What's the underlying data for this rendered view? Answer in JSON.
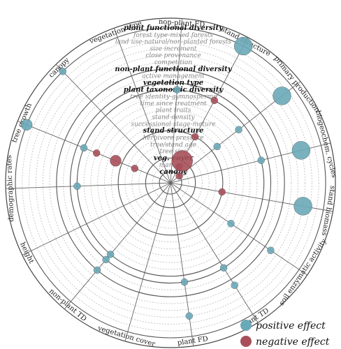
{
  "colors": {
    "positive": "#6aa9b8",
    "negative": "#a8505a",
    "ring_major": "#555555",
    "ring_minor": "#bbbbbb",
    "ring_label_bold": "#111111",
    "ring_label_light": "#888888"
  },
  "axes": [
    {
      "label": "stand structure"
    },
    {
      "label": "primary production"
    },
    {
      "label": "biogeochem. cycles"
    },
    {
      "label": "stand biomass"
    },
    {
      "label": "soil enzymatic activity"
    },
    {
      "label": "plant TD"
    },
    {
      "label": "plant FD"
    },
    {
      "label": "vegetation cover"
    },
    {
      "label": "non-plant TD"
    },
    {
      "label": "height"
    },
    {
      "label": "demographic rates"
    },
    {
      "label": "tree growth"
    },
    {
      "label": "canopy"
    },
    {
      "label": "vegetation type"
    },
    {
      "label": "non-plant FD"
    }
  ],
  "rings": [
    {
      "label": "plant functional diversity",
      "style": "bold"
    },
    {
      "label": "forest type-mixed forests",
      "style": "light"
    },
    {
      "label": "land use-natural/non-planted forests",
      "style": "light"
    },
    {
      "label": "size increment",
      "style": "light"
    },
    {
      "label": "close provenance",
      "style": "light"
    },
    {
      "label": "competition",
      "style": "light"
    },
    {
      "label": "non-plant functional diversity",
      "style": "bold"
    },
    {
      "label": "active management",
      "style": "light"
    },
    {
      "label": "vegetation type",
      "style": "bold"
    },
    {
      "label": "plant taxonomic diversity",
      "style": "bold"
    },
    {
      "label": "tree identity-gymnosperms",
      "style": "light"
    },
    {
      "label": "time since treatment",
      "style": "light"
    },
    {
      "label": "plant traits",
      "style": "light"
    },
    {
      "label": "stand density",
      "style": "light"
    },
    {
      "label": "successional stage-mature",
      "style": "light"
    },
    {
      "label": "stand structure",
      "style": "bold"
    },
    {
      "label": "herbivore pressure",
      "style": "light"
    },
    {
      "label": "tree/stand age",
      "style": "light"
    },
    {
      "label": "tree size",
      "style": "light"
    },
    {
      "label": "veg. cover",
      "style": "bold"
    },
    {
      "label": "man. int.",
      "style": "light"
    },
    {
      "label": "canopy",
      "style": "bold"
    }
  ],
  "effects": [
    {
      "axis": 0,
      "ring": 0,
      "sign": "positive",
      "size": 3
    },
    {
      "axis": 0,
      "ring": 9,
      "sign": "negative",
      "size": 1
    },
    {
      "axis": 0,
      "ring": 15,
      "sign": "negative",
      "size": 1
    },
    {
      "axis": 0,
      "ring": 20,
      "sign": "negative",
      "size": 1
    },
    {
      "axis": 1,
      "ring": 2,
      "sign": "positive",
      "size": 3
    },
    {
      "axis": 1,
      "ring": 10,
      "sign": "positive",
      "size": 1
    },
    {
      "axis": 1,
      "ring": 14,
      "sign": "positive",
      "size": 1
    },
    {
      "axis": 1,
      "ring": 21,
      "sign": "negative",
      "size": 1
    },
    {
      "axis": 2,
      "ring": 3,
      "sign": "positive",
      "size": 3
    },
    {
      "axis": 2,
      "ring": 9,
      "sign": "positive",
      "size": 1
    },
    {
      "axis": 3,
      "ring": 3,
      "sign": "positive",
      "size": 3
    },
    {
      "axis": 3,
      "ring": 15,
      "sign": "negative",
      "size": 1
    },
    {
      "axis": 4,
      "ring": 5,
      "sign": "positive",
      "size": 1
    },
    {
      "axis": 4,
      "ring": 12,
      "sign": "positive",
      "size": 1
    },
    {
      "axis": 5,
      "ring": 5,
      "sign": "positive",
      "size": 1
    },
    {
      "axis": 5,
      "ring": 8,
      "sign": "positive",
      "size": 1
    },
    {
      "axis": 6,
      "ring": 3,
      "sign": "positive",
      "size": 1
    },
    {
      "axis": 6,
      "ring": 8,
      "sign": "positive",
      "size": 1
    },
    {
      "axis": 8,
      "ring": 6,
      "sign": "positive",
      "size": 1
    },
    {
      "axis": 8,
      "ring": 8,
      "sign": "positive",
      "size": 1
    },
    {
      "axis": 8,
      "ring": 9,
      "sign": "positive",
      "size": 1
    },
    {
      "axis": 10,
      "ring": 9,
      "sign": "positive",
      "size": 1
    },
    {
      "axis": 11,
      "ring": 0,
      "sign": "positive",
      "size": 2
    },
    {
      "axis": 11,
      "ring": 9,
      "sign": "positive",
      "size": 1
    },
    {
      "axis": 11,
      "ring": 11,
      "sign": "negative",
      "size": 1
    },
    {
      "axis": 11,
      "ring": 14,
      "sign": "negative",
      "size": 2
    },
    {
      "axis": 11,
      "ring": 17,
      "sign": "negative",
      "size": 1
    },
    {
      "axis": 12,
      "ring": 0,
      "sign": "positive",
      "size": 1
    },
    {
      "axis": 14,
      "ring": 9,
      "sign": "positive",
      "size": 1
    },
    {
      "axis": 0,
      "ring": 19,
      "sign": "negative",
      "size": 4
    }
  ],
  "legend": {
    "positive_label": "positive effect",
    "negative_label": "negative effect"
  }
}
